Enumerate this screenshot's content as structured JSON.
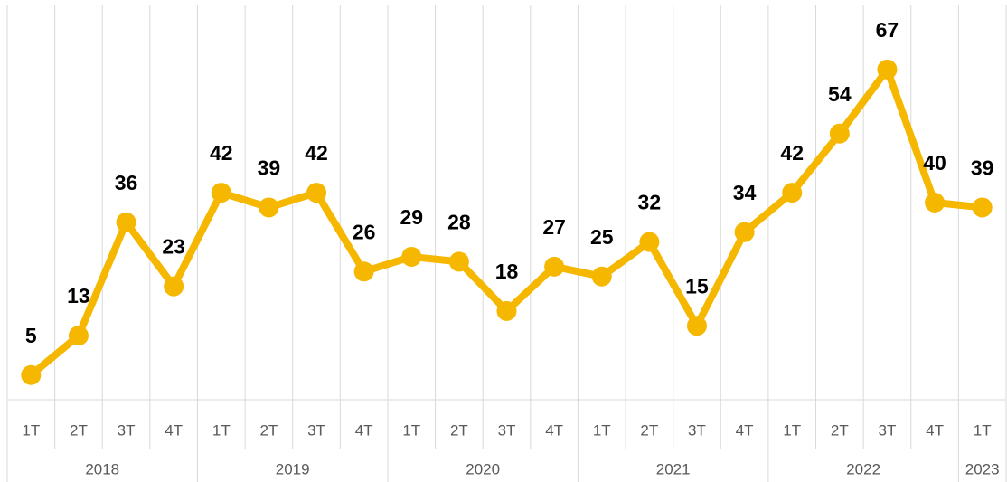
{
  "chart_data": {
    "type": "line",
    "categories": [
      "1T",
      "2T",
      "3T",
      "4T",
      "1T",
      "2T",
      "3T",
      "4T",
      "1T",
      "2T",
      "3T",
      "4T",
      "1T",
      "2T",
      "3T",
      "4T",
      "1T",
      "2T",
      "3T",
      "4T",
      "1T"
    ],
    "groups": [
      {
        "name": "2018",
        "count": 4
      },
      {
        "name": "2019",
        "count": 4
      },
      {
        "name": "2020",
        "count": 4
      },
      {
        "name": "2021",
        "count": 4
      },
      {
        "name": "2022",
        "count": 4
      },
      {
        "name": "2023",
        "count": 1
      }
    ],
    "series": [
      {
        "color": "#f5b700",
        "values": [
          5,
          13,
          36,
          23,
          42,
          39,
          42,
          26,
          29,
          28,
          18,
          27,
          25,
          32,
          15,
          34,
          42,
          54,
          67,
          40,
          39
        ]
      }
    ],
    "ylim": [
      0,
      80
    ],
    "grid": true
  }
}
